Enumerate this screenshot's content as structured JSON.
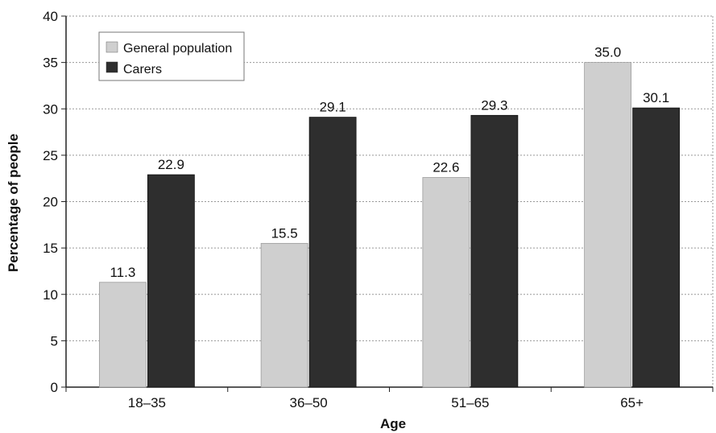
{
  "chart_data": {
    "type": "bar",
    "categories": [
      "18–35",
      "36–50",
      "51–65",
      "65+"
    ],
    "series": [
      {
        "name": "General population",
        "values": [
          11.3,
          15.5,
          22.6,
          35.0
        ],
        "labels": [
          "11.3",
          "15.5",
          "22.6",
          "35.0"
        ],
        "color": "#cfcfcf"
      },
      {
        "name": "Carers",
        "values": [
          22.9,
          29.1,
          29.3,
          30.1
        ],
        "labels": [
          "22.9",
          "29.1",
          "29.3",
          "30.1"
        ],
        "color": "#2e2e2e"
      }
    ],
    "title": "",
    "xlabel": "Age",
    "ylabel": "Percentage of people",
    "ylim": [
      0,
      40
    ],
    "yticks": [
      0,
      5,
      10,
      15,
      20,
      25,
      30,
      35,
      40
    ],
    "grid": true,
    "legend_position": "top-left"
  }
}
